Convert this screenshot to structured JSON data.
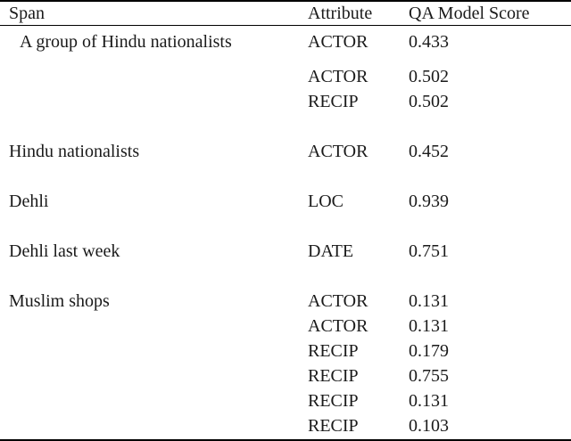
{
  "table": {
    "headers": {
      "span": "Span",
      "attribute": "Attribute",
      "score": "QA Model Score"
    },
    "rows": [
      {
        "span": "A group of Hindu nationalists",
        "attribute": "ACTOR",
        "score": "0.433"
      },
      {
        "span": "",
        "attribute": "ACTOR",
        "score": "0.502"
      },
      {
        "span": "",
        "attribute": "RECIP",
        "score": "0.502"
      },
      {
        "span": "Hindu nationalists",
        "attribute": "ACTOR",
        "score": "0.452"
      },
      {
        "span": "Dehli",
        "attribute": "LOC",
        "score": "0.939"
      },
      {
        "span": "Dehli last week",
        "attribute": "DATE",
        "score": "0.751"
      },
      {
        "span": "Muslim shops",
        "attribute": "ACTOR",
        "score": "0.131"
      },
      {
        "span": "",
        "attribute": "ACTOR",
        "score": "0.131"
      },
      {
        "span": "",
        "attribute": "RECIP",
        "score": "0.179"
      },
      {
        "span": "",
        "attribute": "RECIP",
        "score": "0.755"
      },
      {
        "span": "",
        "attribute": "RECIP",
        "score": "0.131"
      },
      {
        "span": "",
        "attribute": "RECIP",
        "score": "0.103"
      }
    ]
  }
}
